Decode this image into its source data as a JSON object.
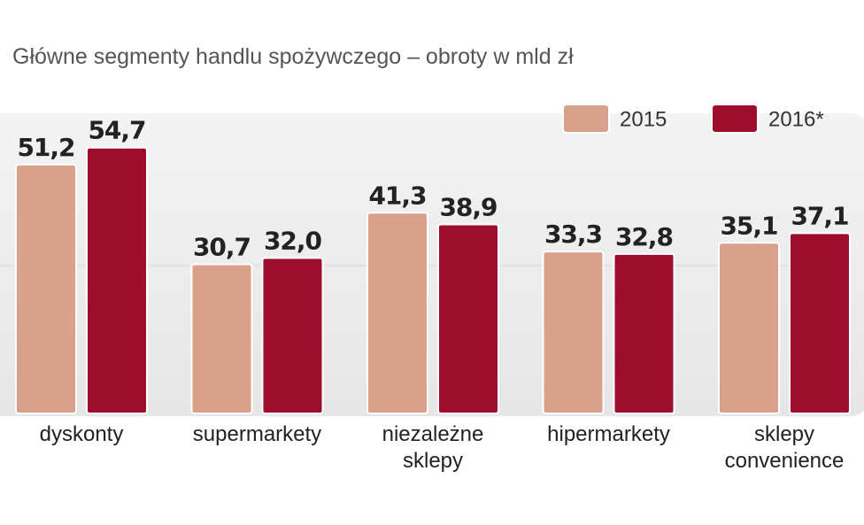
{
  "chart_data": {
    "type": "bar",
    "title": "Główne segmenty handlu spożywczego – obroty w mld zł",
    "categories": [
      "dyskonty",
      "supermarkety",
      "niezależne sklepy",
      "hipermarkety",
      "sklepy convenience"
    ],
    "series": [
      {
        "name": "2015",
        "color": "#d9a18b",
        "values": [
          51.2,
          30.7,
          41.3,
          33.3,
          35.1
        ],
        "value_labels": [
          "51,2",
          "30,7",
          "41,3",
          "33,3",
          "35,1"
        ]
      },
      {
        "name": "2016*",
        "color": "#9e0d2b",
        "values": [
          54.7,
          32.0,
          38.9,
          32.8,
          37.1
        ],
        "value_labels": [
          "54,7",
          "32,0",
          "38,9",
          "32,8",
          "37,1"
        ]
      }
    ]
  }
}
